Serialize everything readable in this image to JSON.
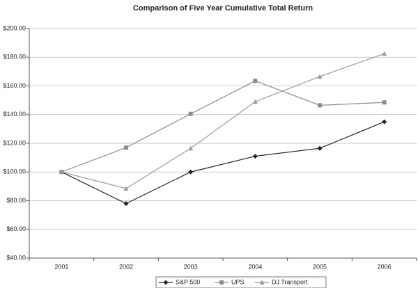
{
  "chart_data": {
    "type": "line",
    "title": "Comparison of Five Year Cumulative Total Return",
    "categories": [
      "2001",
      "2002",
      "2003",
      "2004",
      "2005",
      "2006"
    ],
    "series": [
      {
        "name": "S&P 500",
        "color": "#222222",
        "marker": "diamond",
        "values": [
          100,
          78,
          100,
          111,
          116.5,
          135
        ]
      },
      {
        "name": "UPS",
        "color": "#8c8c8c",
        "marker": "square",
        "values": [
          100,
          117,
          140.5,
          163.5,
          146.5,
          148.5
        ]
      },
      {
        "name": "DJ Transport",
        "color": "#9a9a9a",
        "marker": "triangle",
        "values": [
          100,
          88.5,
          116.5,
          149,
          166.5,
          182.5
        ]
      }
    ],
    "ylim": [
      40,
      200
    ],
    "yticks": [
      {
        "value": 40,
        "label": "$40.00"
      },
      {
        "value": 60,
        "label": "$60.00"
      },
      {
        "value": 80,
        "label": "$80.00"
      },
      {
        "value": 100,
        "label": "$100.00"
      },
      {
        "value": 120,
        "label": "$120.00"
      },
      {
        "value": 140,
        "label": "$140.00"
      },
      {
        "value": 160,
        "label": "$160.00"
      },
      {
        "value": 180,
        "label": "$180.00"
      },
      {
        "value": 200,
        "label": "$200.00"
      }
    ],
    "grid": true,
    "legend": "bottom"
  }
}
